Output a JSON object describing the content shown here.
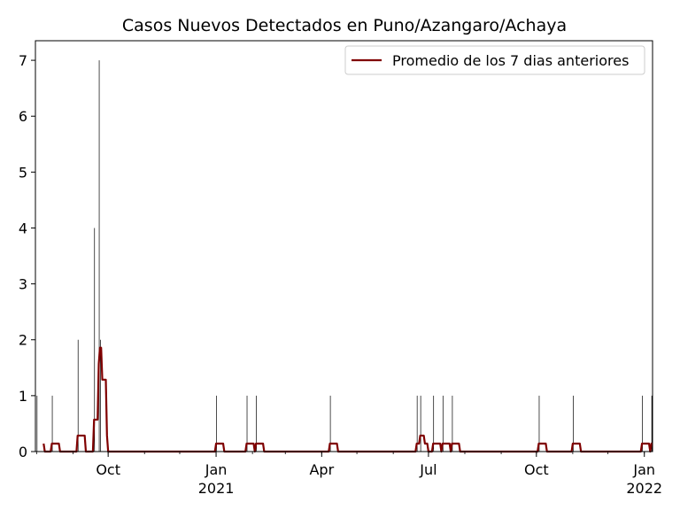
{
  "chart_data": {
    "type": "bar+line",
    "title": "Casos Nuevos Detectados en Puno/Azangaro/Achaya",
    "xlabel": "",
    "ylabel": "",
    "xlim": [
      "2020-07-31",
      "2022-01-08"
    ],
    "ylim": [
      0,
      7.35
    ],
    "yticks": [
      0,
      1,
      2,
      3,
      4,
      5,
      6,
      7
    ],
    "xticks": [
      {
        "date": "2020-10-01",
        "label": "Oct",
        "sublabel": ""
      },
      {
        "date": "2021-01-01",
        "label": "Jan",
        "sublabel": "2021"
      },
      {
        "date": "2021-04-01",
        "label": "Apr",
        "sublabel": ""
      },
      {
        "date": "2021-07-01",
        "label": "Jul",
        "sublabel": ""
      },
      {
        "date": "2021-10-01",
        "label": "Oct",
        "sublabel": ""
      },
      {
        "date": "2022-01-01",
        "label": "Jan",
        "sublabel": "2022"
      }
    ],
    "grid": false,
    "legend": {
      "position": "top-right"
    },
    "daily_cases": {
      "name": "",
      "color": "#000000",
      "points": [
        {
          "date": "2020-08-01",
          "value": 1
        },
        {
          "date": "2020-08-14",
          "value": 1
        },
        {
          "date": "2020-09-05",
          "value": 2
        },
        {
          "date": "2020-09-19",
          "value": 4
        },
        {
          "date": "2020-09-23",
          "value": 7
        },
        {
          "date": "2020-09-24",
          "value": 2
        },
        {
          "date": "2021-01-01",
          "value": 1
        },
        {
          "date": "2021-01-27",
          "value": 1
        },
        {
          "date": "2021-02-04",
          "value": 1
        },
        {
          "date": "2021-04-08",
          "value": 1
        },
        {
          "date": "2021-06-21",
          "value": 1
        },
        {
          "date": "2021-06-24",
          "value": 1
        },
        {
          "date": "2021-07-05",
          "value": 1
        },
        {
          "date": "2021-07-13",
          "value": 1
        },
        {
          "date": "2021-07-21",
          "value": 1
        },
        {
          "date": "2021-10-03",
          "value": 1
        },
        {
          "date": "2021-11-01",
          "value": 1
        },
        {
          "date": "2021-12-30",
          "value": 1
        },
        {
          "date": "2022-01-07",
          "value": 1
        }
      ]
    },
    "rolling_average": {
      "name": "Promedio de los 7 dias anteriores",
      "color": "#800000",
      "window_days": 7
    }
  }
}
